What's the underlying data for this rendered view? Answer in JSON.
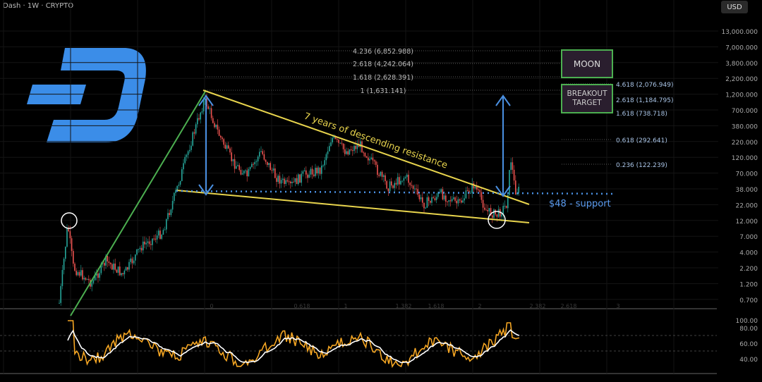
{
  "header": {
    "title": "Dash · 1W · CRYPTO",
    "currency": "USD"
  },
  "chart_data": {
    "type": "candlestick",
    "scale": "log",
    "price_axis_ticks": [
      "13,000.000",
      "7,000.000",
      "3,800.000",
      "2,200.000",
      "1,200.000",
      "700.000",
      "380.000",
      "220.000",
      "120.000",
      "70.000",
      "38.000",
      "22.000",
      "12.000",
      "7.000",
      "4.000",
      "2.200",
      "1.200",
      "0.700"
    ],
    "time_axis_labels": [
      "0",
      "0.618",
      "1",
      "1.382",
      "1.618",
      "2",
      "2.382",
      "2.618",
      "3"
    ],
    "fib_upper": [
      {
        "label": "4.236 (6,852.988)"
      },
      {
        "label": "2.618 (4,242.064)"
      },
      {
        "label": "1.618 (2,628.391)"
      },
      {
        "label": "1 (1,631.141)"
      }
    ],
    "fib_right": [
      {
        "label": "4.618 (2,076.949)"
      },
      {
        "label": "2.618 (1,184.795)"
      },
      {
        "label": "1.618 (738.718)"
      },
      {
        "label": "0.618 (292.641)"
      },
      {
        "label": "0.236 (122.239)"
      }
    ],
    "annotations": {
      "resistance": "7 years of descending resistance",
      "support": "$48 - support",
      "moon": "MOON",
      "breakout": "BREAKOUT TARGET"
    },
    "oscillator_ticks": [
      "80.00",
      "60.00",
      "40.00"
    ],
    "oscillator_top_label": "100.00",
    "colors": {
      "up": "#26a69a",
      "down": "#ef5350",
      "trend": "#e8d44d",
      "support": "#4a90e2",
      "green": "#4caf50",
      "osc": "#f5a623",
      "logo": "#3b8de8"
    }
  }
}
